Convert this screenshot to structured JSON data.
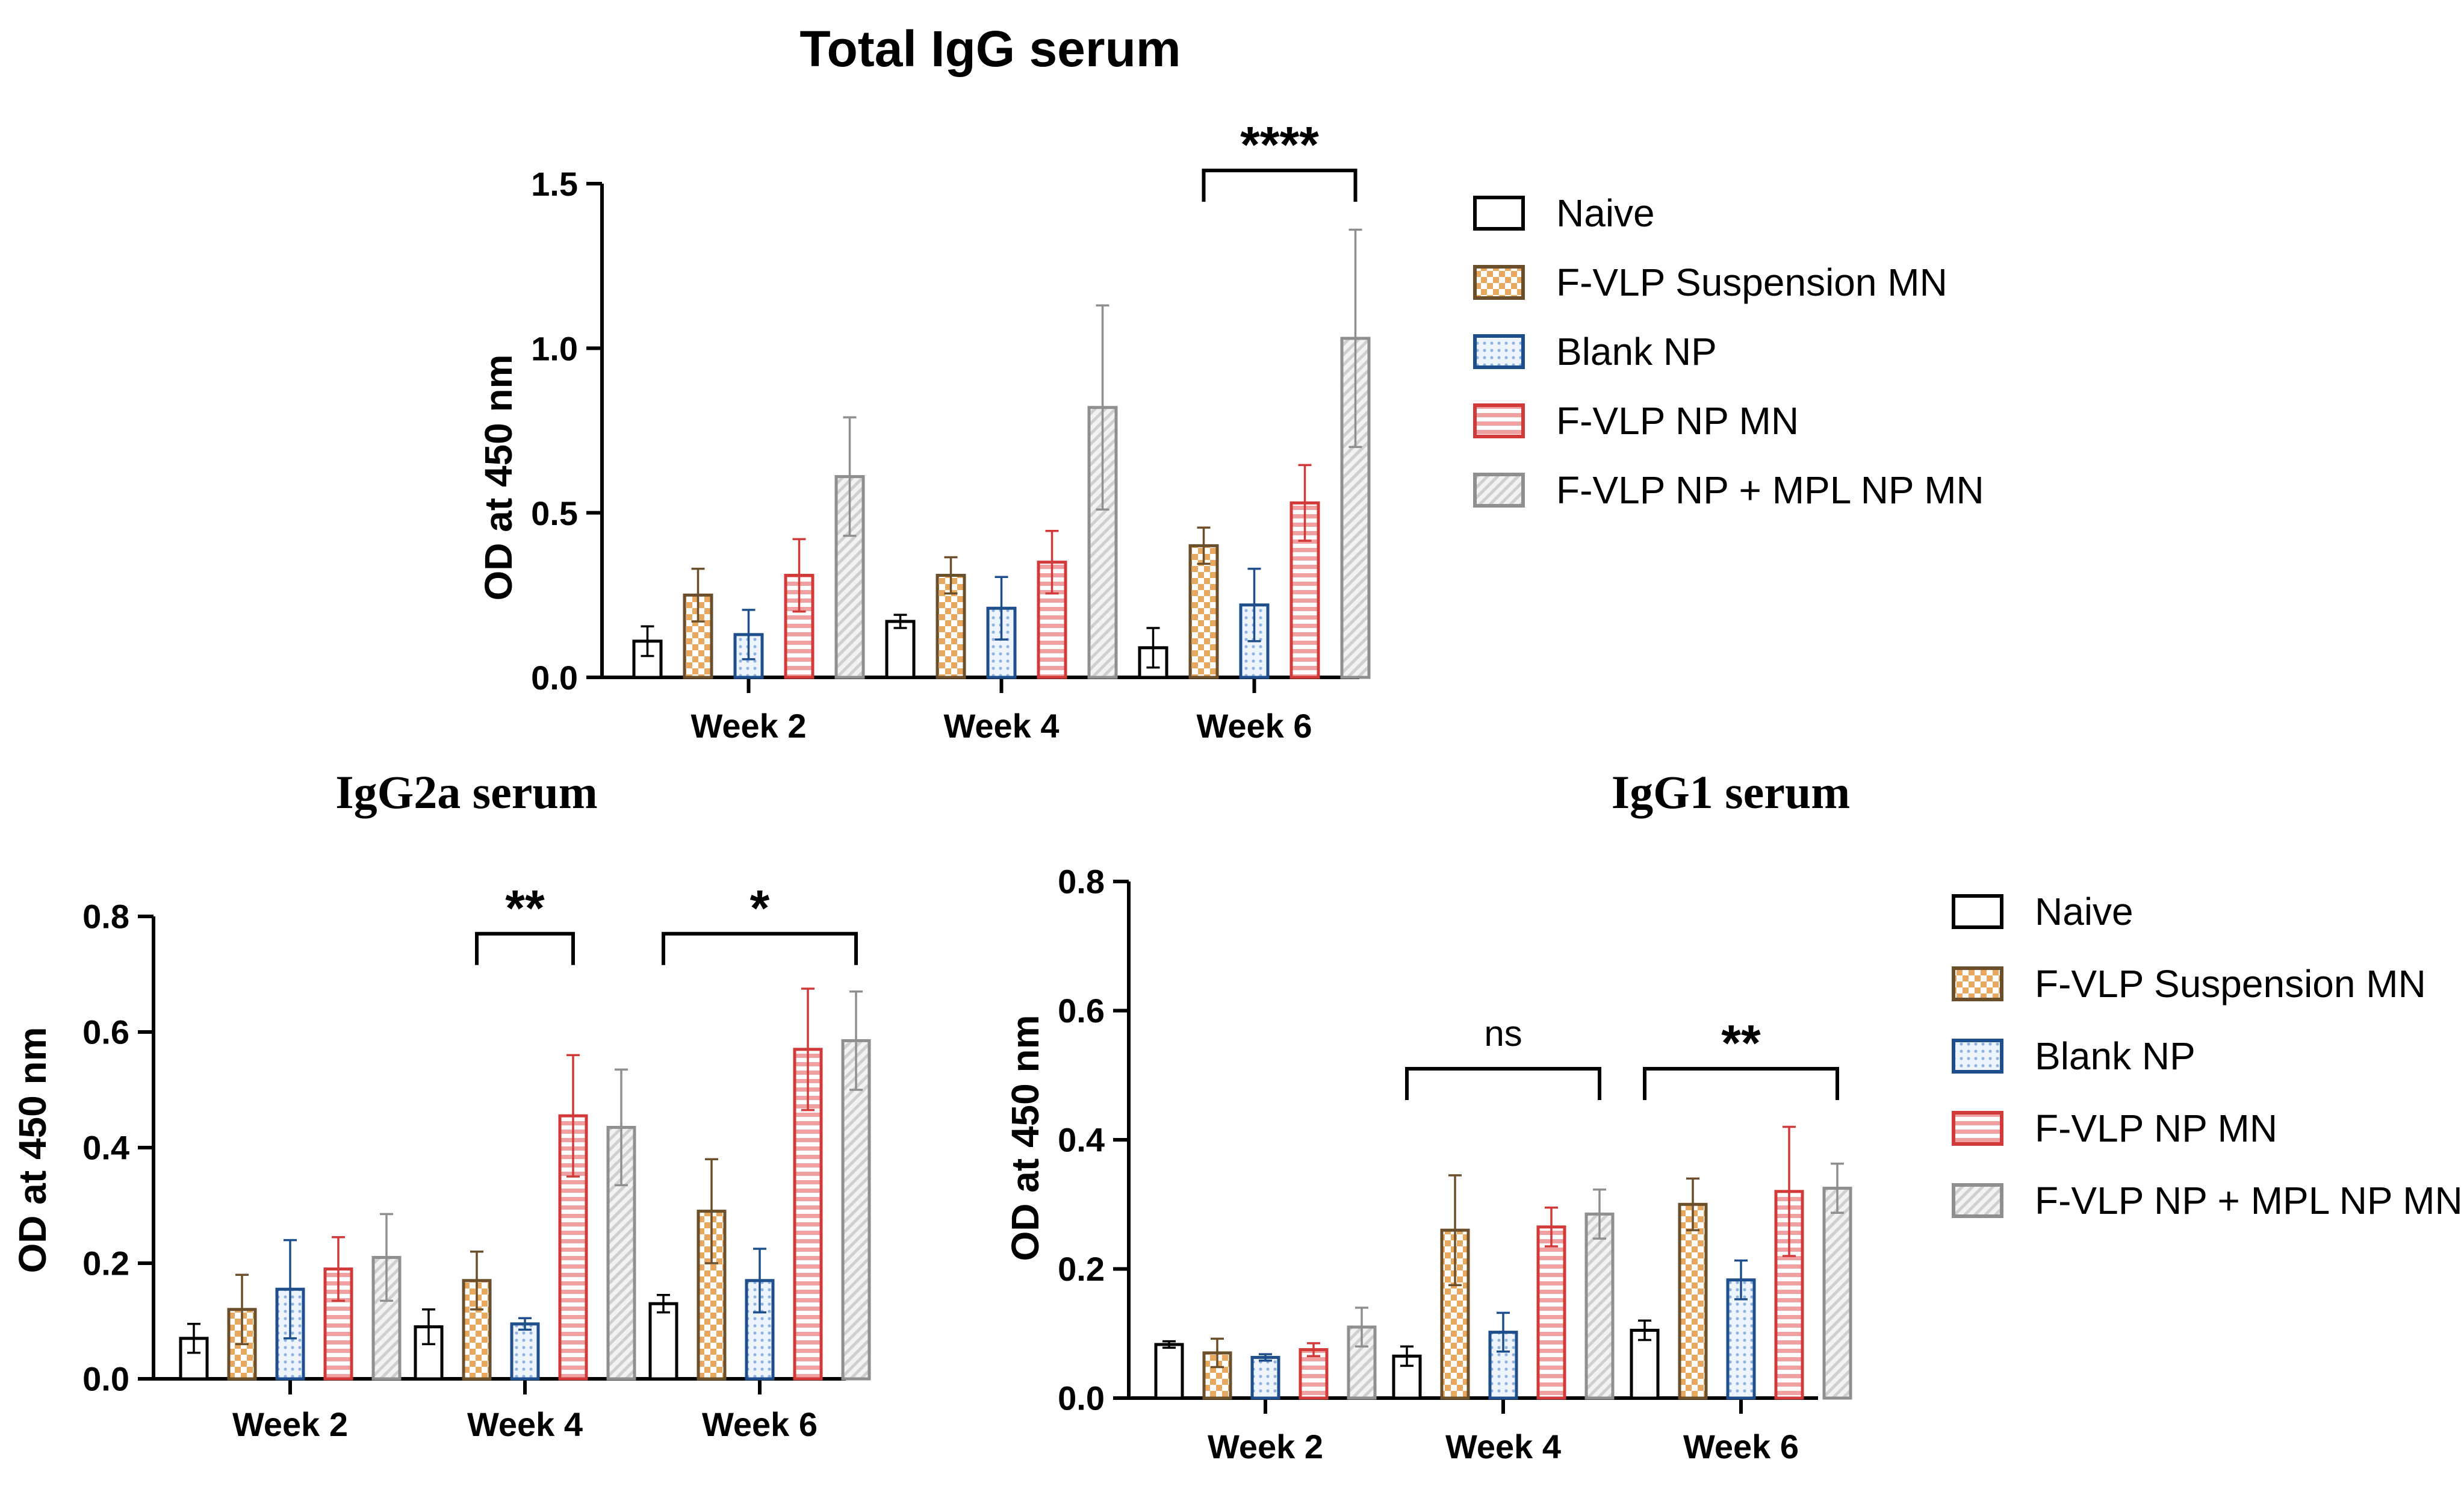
{
  "groups": [
    {
      "name": "Naive",
      "color": "#000000",
      "pattern": "none"
    },
    {
      "name": "F-VLP Suspension MN",
      "color": "#6b4f2a",
      "pattern": "checker"
    },
    {
      "name": "Blank NP",
      "color": "#1f4e8c",
      "pattern": "dots"
    },
    {
      "name": "F-VLP NP MN",
      "color": "#d23a3a",
      "pattern": "hstripes"
    },
    {
      "name": "F-VLP NP + MPL NP MN",
      "color": "#8f8f8f",
      "pattern": "diag"
    }
  ],
  "pattern_fills": {
    "checker": "#e8a860",
    "dots": "#8fb3df",
    "hstripes": "#f0a0a0",
    "diag": "#cfcfcf"
  },
  "chart_data": [
    {
      "id": "total-igg",
      "type": "bar",
      "title": "Total IgG serum",
      "ylabel": "OD at 450 nm",
      "xlabel": "",
      "ylim": [
        0,
        1.5
      ],
      "yticks": [
        0.0,
        0.5,
        1.0,
        1.5
      ],
      "ytick_labels": [
        "0.0",
        "0.5",
        "1.0",
        "1.5"
      ],
      "categories": [
        "Week 2",
        "Week 4",
        "Week 6"
      ],
      "series": [
        {
          "name": "Naive",
          "values": [
            0.11,
            0.17,
            0.09
          ],
          "errors": [
            0.045,
            0.02,
            0.06
          ]
        },
        {
          "name": "F-VLP Suspension MN",
          "values": [
            0.25,
            0.31,
            0.4
          ],
          "errors": [
            0.08,
            0.055,
            0.055
          ]
        },
        {
          "name": "Blank NP",
          "values": [
            0.13,
            0.21,
            0.22
          ],
          "errors": [
            0.075,
            0.095,
            0.11
          ]
        },
        {
          "name": "F-VLP NP MN",
          "values": [
            0.31,
            0.35,
            0.53
          ],
          "errors": [
            0.11,
            0.095,
            0.115
          ]
        },
        {
          "name": "F-VLP NP + MPL NP MN",
          "values": [
            0.61,
            0.82,
            1.03
          ],
          "errors": [
            0.18,
            0.31,
            0.33
          ]
        }
      ],
      "annotations": [
        {
          "label": "****",
          "category": 2,
          "from_series": 1,
          "to_series": 4,
          "y": 1.54
        }
      ],
      "legend_position": "right"
    },
    {
      "id": "igg2a",
      "type": "bar",
      "title": "IgG2a serum",
      "ylabel": "OD at 450 nm",
      "xlabel": "",
      "ylim": [
        0,
        0.8
      ],
      "yticks": [
        0.0,
        0.2,
        0.4,
        0.6,
        0.8
      ],
      "ytick_labels": [
        "0.0",
        "0.2",
        "0.4",
        "0.6",
        "0.8"
      ],
      "categories": [
        "Week 2",
        "Week 4",
        "Week 6"
      ],
      "series": [
        {
          "name": "Naive",
          "values": [
            0.07,
            0.09,
            0.13
          ],
          "errors": [
            0.025,
            0.03,
            0.015
          ]
        },
        {
          "name": "F-VLP Suspension MN",
          "values": [
            0.12,
            0.17,
            0.29
          ],
          "errors": [
            0.06,
            0.05,
            0.09
          ]
        },
        {
          "name": "Blank NP",
          "values": [
            0.155,
            0.095,
            0.17
          ],
          "errors": [
            0.085,
            0.01,
            0.055
          ]
        },
        {
          "name": "F-VLP NP MN",
          "values": [
            0.19,
            0.455,
            0.57
          ],
          "errors": [
            0.055,
            0.105,
            0.105
          ]
        },
        {
          "name": "F-VLP NP + MPL NP MN",
          "values": [
            0.21,
            0.435,
            0.585
          ],
          "errors": [
            0.075,
            0.1,
            0.085
          ]
        }
      ],
      "annotations": [
        {
          "label": "**",
          "category": 1,
          "from_series": 1,
          "to_series": 3,
          "y": 0.77
        },
        {
          "label": "*",
          "category": 2,
          "from_series": 0,
          "to_series": 4,
          "y": 0.77
        }
      ],
      "legend_position": "none"
    },
    {
      "id": "igg1",
      "type": "bar",
      "title": "IgG1 serum",
      "ylabel": "OD at 450 nm",
      "xlabel": "",
      "ylim": [
        0,
        0.8
      ],
      "yticks": [
        0.0,
        0.2,
        0.4,
        0.6,
        0.8
      ],
      "ytick_labels": [
        "0.0",
        "0.2",
        "0.4",
        "0.6",
        "0.8"
      ],
      "categories": [
        "Week 2",
        "Week 4",
        "Week 6"
      ],
      "series": [
        {
          "name": "Naive",
          "values": [
            0.083,
            0.065,
            0.105
          ],
          "errors": [
            0.005,
            0.015,
            0.015
          ]
        },
        {
          "name": "F-VLP Suspension MN",
          "values": [
            0.07,
            0.26,
            0.3
          ],
          "errors": [
            0.022,
            0.085,
            0.04
          ]
        },
        {
          "name": "Blank NP",
          "values": [
            0.063,
            0.102,
            0.183
          ],
          "errors": [
            0.005,
            0.03,
            0.03
          ]
        },
        {
          "name": "F-VLP NP MN",
          "values": [
            0.075,
            0.265,
            0.32
          ],
          "errors": [
            0.01,
            0.03,
            0.1
          ]
        },
        {
          "name": "F-VLP NP + MPL NP MN",
          "values": [
            0.11,
            0.285,
            0.325
          ],
          "errors": [
            0.03,
            0.038,
            0.038
          ]
        }
      ],
      "annotations": [
        {
          "label": "ns",
          "category": 1,
          "from_series": 0,
          "to_series": 4,
          "y": 0.51
        },
        {
          "label": "**",
          "category": 2,
          "from_series": 0,
          "to_series": 4,
          "y": 0.51
        }
      ],
      "legend_position": "right"
    }
  ]
}
